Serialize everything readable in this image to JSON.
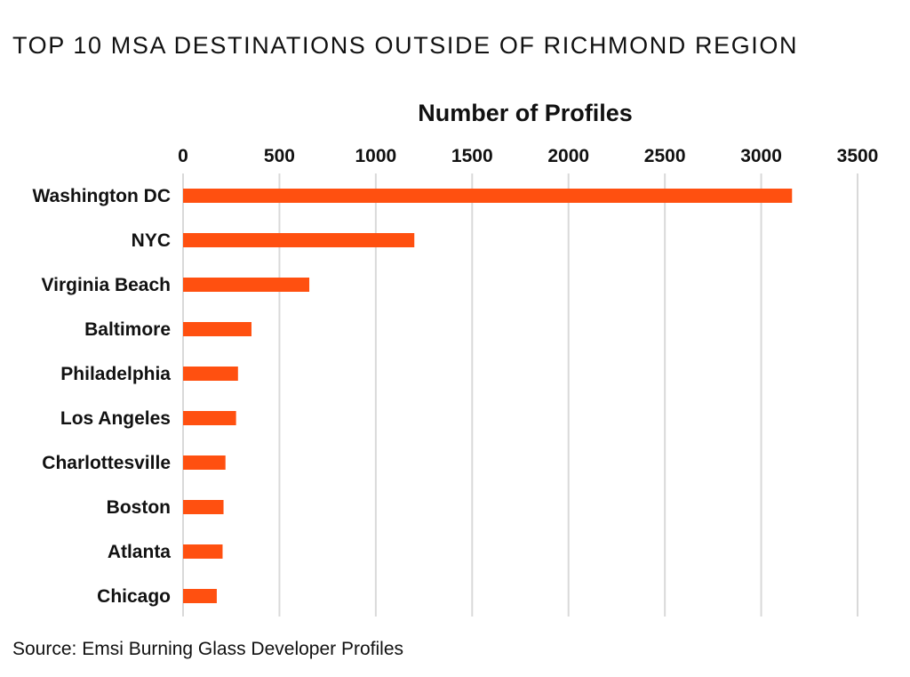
{
  "chart_data": {
    "type": "bar",
    "orientation": "horizontal",
    "title": "TOP 10 MSA DESTINATIONS OUTSIDE OF RICHMOND REGION",
    "xlabel": "Number of Profiles",
    "ylabel": "",
    "categories": [
      "Washington DC",
      "NYC",
      "Virginia Beach",
      "Baltimore",
      "Philadelphia",
      "Los Angeles",
      "Charlottesville",
      "Boston",
      "Atlanta",
      "Chicago"
    ],
    "values": [
      3160,
      1200,
      655,
      355,
      285,
      275,
      220,
      210,
      205,
      175
    ],
    "xlim": [
      0,
      3500
    ],
    "ticks": [
      0,
      500,
      1000,
      1500,
      2000,
      2500,
      3000,
      3500
    ],
    "tick_labels": [
      "0",
      "500",
      "1000",
      "1500",
      "2000",
      "2500",
      "3000",
      "3500"
    ],
    "grid": "vertical",
    "axis_position": "top",
    "bar_color": "#ff5010",
    "source": "Source: Emsi Burning Glass Developer Profiles"
  }
}
